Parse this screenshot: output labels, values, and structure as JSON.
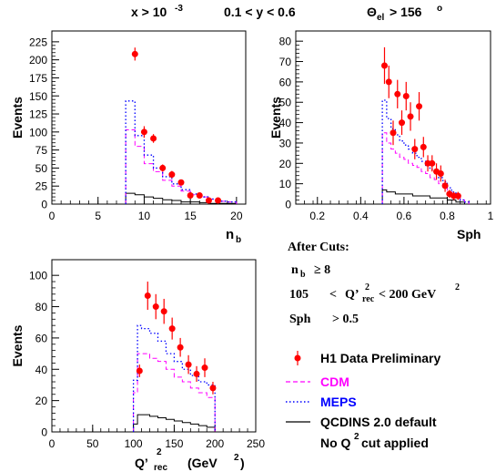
{
  "header": {
    "cut_x": "x > 10",
    "cut_x_exp": "-3",
    "cut_y": "0.1 < y < 0.6",
    "cut_theta": "Θ",
    "cut_theta_sub": "el",
    "cut_theta_val": "> 156",
    "cut_theta_deg": "o"
  },
  "cuts_box": {
    "title": "After Cuts:",
    "nb_main": "n",
    "nb_sub": "b",
    "nb_rest": "≥ 8",
    "q2_lo": "105",
    "q2_lt1": "<",
    "q2_var": "Q’",
    "q2_var_sub": "rec",
    "q2_var_sup": "2",
    "q2_rest": "< 200 GeV",
    "q2_rest_sup": "2",
    "sph_label": "Sph",
    "sph_rest": "> 0.5"
  },
  "legend": {
    "data_label": "H1 Data Preliminary",
    "cdm_label": "CDM",
    "meps_label": "MEPS",
    "qcdins_label": "QCDINS 2.0 default",
    "note_a": "No Q",
    "note_sup": "2",
    "note_b": "cut applied"
  },
  "colors": {
    "data": "#ff0000",
    "cdm": "#ff00ff",
    "meps": "#0000ff",
    "qcdins": "#000000"
  },
  "chart_data": [
    {
      "id": "nb",
      "type": "histogram",
      "ylabel": "Events",
      "xlabel_main": "n",
      "xlabel_sub": "b",
      "xlim": [
        0,
        21
      ],
      "ylim": [
        0,
        240
      ],
      "xticks": [
        0,
        5,
        10,
        15,
        20
      ],
      "yticks": [
        0,
        25,
        50,
        75,
        100,
        125,
        150,
        175,
        200,
        225
      ],
      "xtick_labels": [
        "0",
        "5",
        "10",
        "15",
        "20"
      ],
      "ytick_labels": [
        "0",
        "25",
        "50",
        "75",
        "100",
        "125",
        "150",
        "175",
        "200",
        "225"
      ],
      "data": {
        "x": [
          9,
          10,
          11,
          12,
          13,
          14,
          15,
          16,
          17,
          18
        ],
        "y": [
          208,
          100,
          91,
          50,
          41,
          30,
          12,
          12,
          5,
          5
        ],
        "err": [
          9,
          8,
          6,
          5,
          5,
          4,
          3,
          3,
          2,
          2
        ]
      },
      "cdm": {
        "edges": [
          8,
          9,
          10,
          11,
          12,
          13,
          14,
          15,
          16,
          17,
          18,
          19,
          20
        ],
        "values": [
          103,
          80,
          56,
          45,
          33,
          25,
          18,
          13,
          10,
          7,
          4,
          3
        ]
      },
      "meps": {
        "edges": [
          8,
          9,
          10,
          11,
          12,
          13,
          14,
          15,
          16,
          17,
          18,
          19,
          20
        ],
        "values": [
          143,
          95,
          68,
          50,
          38,
          28,
          20,
          14,
          10,
          7,
          4,
          3
        ]
      },
      "qcdins": {
        "edges": [
          8,
          9,
          10,
          11,
          12,
          13,
          14,
          15,
          16,
          17,
          18,
          19,
          20
        ],
        "values": [
          15,
          13,
          10,
          8,
          6,
          5,
          3,
          3,
          2,
          1,
          1,
          1
        ]
      }
    },
    {
      "id": "sph",
      "type": "histogram",
      "ylabel": "Events",
      "xlabel": "Sph",
      "xlim": [
        0.1,
        1.0
      ],
      "ylim": [
        0,
        85
      ],
      "xticks": [
        0.2,
        0.4,
        0.6,
        0.8,
        1.0
      ],
      "yticks": [
        0,
        10,
        20,
        30,
        40,
        50,
        60,
        70,
        80
      ],
      "xtick_labels": [
        "0.2",
        "0.4",
        "0.6",
        "0.8",
        "1"
      ],
      "ytick_labels": [
        "0",
        "10",
        "20",
        "30",
        "40",
        "50",
        "60",
        "70",
        "80"
      ],
      "data": {
        "x": [
          0.51,
          0.53,
          0.55,
          0.57,
          0.59,
          0.61,
          0.63,
          0.65,
          0.67,
          0.69,
          0.71,
          0.73,
          0.75,
          0.77,
          0.79,
          0.81,
          0.83,
          0.85
        ],
        "y": [
          68,
          60,
          35,
          54,
          40,
          53,
          43,
          27,
          48,
          28,
          20,
          20,
          16,
          15,
          9,
          5,
          4,
          4
        ],
        "err": [
          9,
          8,
          6,
          7,
          6,
          7,
          7,
          5,
          7,
          5,
          4,
          4,
          4,
          4,
          3,
          2,
          2,
          2
        ]
      },
      "cdm": {
        "edges": [
          0.5,
          0.52,
          0.54,
          0.56,
          0.58,
          0.6,
          0.62,
          0.64,
          0.66,
          0.68,
          0.7,
          0.72,
          0.74,
          0.76,
          0.78,
          0.8,
          0.82,
          0.84,
          0.86,
          0.88,
          0.9
        ],
        "values": [
          35,
          30,
          27,
          25,
          23,
          22,
          20,
          19,
          18,
          16,
          15,
          13,
          12,
          10,
          8,
          6,
          4,
          3,
          2,
          1
        ]
      },
      "meps": {
        "edges": [
          0.5,
          0.52,
          0.54,
          0.56,
          0.58,
          0.6,
          0.62,
          0.64,
          0.66,
          0.68,
          0.7,
          0.72,
          0.74,
          0.76,
          0.78,
          0.8,
          0.82,
          0.84,
          0.86,
          0.88,
          0.9
        ],
        "values": [
          51,
          42,
          37,
          34,
          31,
          29,
          27,
          25,
          23,
          21,
          19,
          17,
          15,
          13,
          11,
          8,
          6,
          4,
          2,
          1
        ]
      },
      "qcdins": {
        "edges": [
          0.5,
          0.52,
          0.54,
          0.56,
          0.58,
          0.6,
          0.62,
          0.64,
          0.66,
          0.68,
          0.7,
          0.72,
          0.74,
          0.76,
          0.78,
          0.8,
          0.82,
          0.84,
          0.86,
          0.88,
          0.9
        ],
        "values": [
          7,
          6,
          6,
          5,
          5,
          5,
          5,
          4,
          4,
          4,
          4,
          3,
          3,
          3,
          3,
          2,
          2,
          1,
          1,
          0
        ]
      }
    },
    {
      "id": "q2",
      "type": "histogram",
      "ylabel": "Events",
      "xlabel_main": "Q’",
      "xlabel_sup": "2",
      "xlabel_sub": "rec",
      "xlabel_unit": "(GeV",
      "xlabel_unit_sup": "2",
      "xlabel_unit_close": ")",
      "xlim": [
        0,
        250
      ],
      "ylim": [
        0,
        110
      ],
      "xticks": [
        0,
        50,
        100,
        150,
        200,
        250
      ],
      "yticks": [
        0,
        20,
        40,
        60,
        80,
        100
      ],
      "xtick_labels": [
        "0",
        "50",
        "100",
        "150",
        "200",
        "250"
      ],
      "ytick_labels": [
        "0",
        "20",
        "40",
        "60",
        "80",
        "100"
      ],
      "data": {
        "x": [
          107.5,
          117.5,
          127.5,
          137.5,
          147.5,
          157.5,
          167.5,
          177.5,
          187.5,
          197.5
        ],
        "y": [
          39,
          87,
          80,
          77,
          66,
          54,
          43,
          37,
          41,
          28
        ],
        "err": [
          4,
          9,
          8,
          8,
          7,
          6,
          6,
          5,
          6,
          4
        ]
      },
      "cdm": {
        "edges": [
          100,
          105,
          110,
          120,
          130,
          140,
          150,
          160,
          170,
          180,
          190,
          200
        ],
        "values": [
          25,
          50,
          50,
          47,
          45,
          40,
          35,
          32,
          28,
          25,
          22
        ]
      },
      "meps": {
        "edges": [
          100,
          105,
          110,
          120,
          130,
          140,
          150,
          160,
          170,
          180,
          190,
          200
        ],
        "values": [
          33,
          68,
          66,
          63,
          58,
          50,
          45,
          40,
          36,
          32,
          30
        ]
      },
      "qcdins": {
        "edges": [
          100,
          105,
          110,
          120,
          130,
          140,
          150,
          160,
          170,
          180,
          190,
          200
        ],
        "values": [
          5,
          11,
          11,
          10,
          9,
          8,
          7,
          6,
          5,
          4,
          3
        ]
      }
    }
  ]
}
